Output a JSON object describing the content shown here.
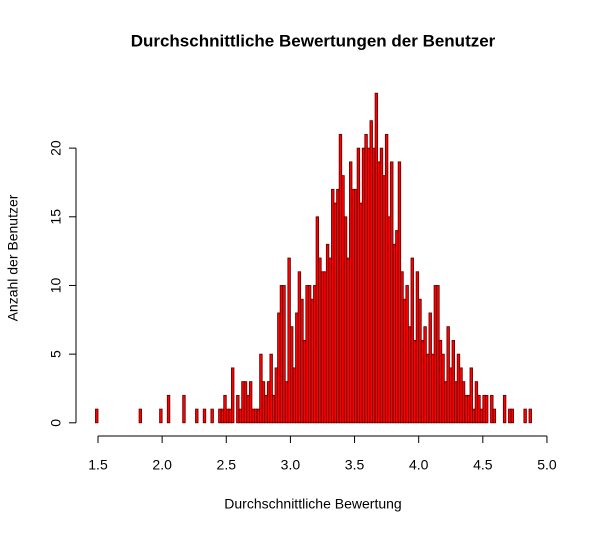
{
  "chart_data": {
    "type": "histogram",
    "title": "Durchschnittliche Bewertungen der Benutzer",
    "xlabel": "Durchschnittliche Bewertung",
    "ylabel": "Anzahl der Benutzer",
    "color": "#ff0000",
    "edgecolor": "#5a0000",
    "bins": [
      1.48,
      1.5,
      1.52,
      1.54,
      1.56,
      1.58,
      1.6,
      1.62,
      1.64,
      1.66,
      1.68,
      1.7,
      1.72,
      1.74,
      1.76,
      1.78,
      1.8,
      1.82,
      1.84,
      1.86,
      1.88,
      1.9,
      1.92,
      1.94,
      1.96,
      1.98,
      2.0,
      2.02,
      2.04,
      2.06,
      2.08,
      2.1,
      2.12,
      2.14,
      2.16,
      2.18,
      2.2,
      2.22,
      2.24,
      2.26,
      2.28,
      2.3,
      2.32,
      2.34,
      2.36,
      2.38,
      2.4,
      2.42,
      2.44,
      2.46,
      2.48,
      2.5,
      2.52,
      2.54,
      2.56,
      2.58,
      2.6,
      2.62,
      2.64,
      2.66,
      2.68,
      2.7,
      2.72,
      2.74,
      2.76,
      2.78,
      2.8,
      2.82,
      2.84,
      2.86,
      2.88,
      2.9,
      2.92,
      2.94,
      2.96,
      2.98,
      3.0,
      3.02,
      3.04,
      3.06,
      3.08,
      3.1,
      3.12,
      3.14,
      3.16,
      3.18,
      3.2,
      3.22,
      3.24,
      3.26,
      3.28,
      3.3,
      3.32,
      3.34,
      3.36,
      3.38,
      3.4,
      3.42,
      3.44,
      3.46,
      3.48,
      3.5,
      3.52,
      3.54,
      3.56,
      3.58,
      3.6,
      3.62,
      3.64,
      3.66,
      3.68,
      3.7,
      3.72,
      3.74,
      3.76,
      3.78,
      3.8,
      3.82,
      3.84,
      3.86,
      3.88,
      3.9,
      3.92,
      3.94,
      3.96,
      3.98,
      4.0,
      4.02,
      4.04,
      4.06,
      4.08,
      4.1,
      4.12,
      4.14,
      4.16,
      4.18,
      4.2,
      4.22,
      4.24,
      4.26,
      4.28,
      4.3,
      4.32,
      4.34,
      4.36,
      4.38,
      4.4,
      4.42,
      4.44,
      4.46,
      4.48,
      4.5,
      4.52,
      4.54,
      4.56,
      4.58,
      4.6,
      4.62,
      4.64,
      4.66,
      4.68,
      4.7,
      4.72,
      4.74,
      4.76,
      4.78,
      4.8,
      4.82,
      4.84,
      4.86,
      4.88
    ],
    "values": [
      1,
      0,
      0,
      0,
      0,
      0,
      0,
      0,
      0,
      0,
      0,
      0,
      0,
      0,
      0,
      0,
      0,
      1,
      0,
      0,
      0,
      0,
      0,
      0,
      0,
      1,
      0,
      0,
      2,
      0,
      0,
      0,
      0,
      0,
      2,
      0,
      0,
      0,
      0,
      1,
      0,
      0,
      1,
      0,
      0,
      1,
      0,
      0,
      1,
      1,
      2,
      1,
      1,
      4,
      0,
      2,
      1,
      3,
      3,
      2,
      3,
      1,
      1,
      1,
      5,
      3,
      2,
      3,
      5,
      2,
      4,
      8,
      10,
      10,
      3,
      12,
      7,
      4,
      8,
      11,
      9,
      6,
      10,
      10,
      9,
      10,
      15,
      12,
      11,
      11,
      13,
      12,
      17,
      16,
      17,
      21,
      18,
      15,
      12,
      19,
      17,
      17,
      20,
      16,
      20,
      21,
      20,
      22,
      20,
      24,
      19,
      20,
      18,
      21,
      15,
      19,
      13,
      14,
      19,
      11,
      9,
      10,
      7,
      12,
      6,
      11,
      9,
      6,
      7,
      5,
      8,
      5,
      10,
      10,
      6,
      5,
      3,
      7,
      4,
      6,
      3,
      5,
      4,
      3,
      2,
      2,
      4,
      1,
      3,
      2,
      1,
      2,
      2,
      0,
      2,
      1,
      0,
      0,
      0,
      2,
      0,
      1,
      1,
      0,
      0,
      0,
      0,
      1,
      0,
      1
    ],
    "xlim": [
      1.344,
      5.016
    ],
    "xticks": [
      1.5,
      {
        "value": 2.0,
        "label": "2.0"
      },
      2.5,
      {
        "value": 3.0,
        "label": "3.0"
      },
      3.5,
      {
        "value": 4.0,
        "label": "4.0"
      },
      4.5,
      {
        "value": 5.0,
        "label": "5.0"
      }
    ],
    "ylim": [
      -0.96,
      24.96
    ],
    "yticks": [
      0,
      5,
      10,
      15,
      20
    ]
  }
}
